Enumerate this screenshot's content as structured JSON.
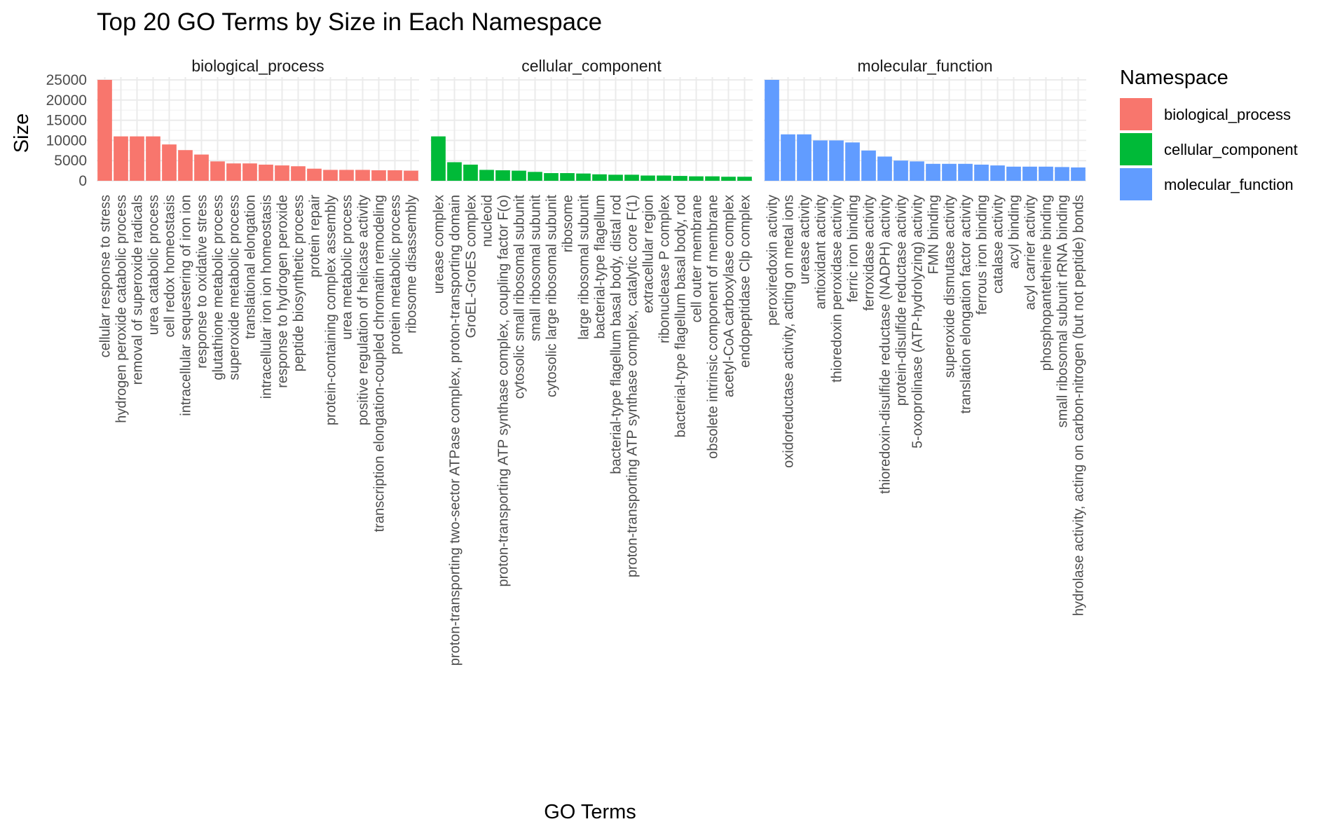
{
  "chart_data": {
    "type": "bar",
    "title": "Top 20 GO Terms by Size in Each Namespace",
    "xlabel": "GO Terms",
    "ylabel": "Size",
    "ylim": [
      0,
      25000
    ],
    "yticks": [
      0,
      5000,
      10000,
      15000,
      20000,
      25000
    ],
    "grid": true,
    "legend": {
      "title": "Namespace",
      "position": "right",
      "entries": [
        {
          "label": "biological_process",
          "color": "#F8766D"
        },
        {
          "label": "cellular_component",
          "color": "#00BA38"
        },
        {
          "label": "molecular_function",
          "color": "#619CFF"
        }
      ]
    },
    "facets": [
      {
        "name": "biological_process",
        "color": "#F8766D",
        "categories": [
          "cellular response to stress",
          "hydrogen peroxide catabolic process",
          "removal of superoxide radicals",
          "urea catabolic process",
          "cell redox homeostasis",
          "intracellular sequestering of iron ion",
          "response to oxidative stress",
          "glutathione metabolic process",
          "superoxide metabolic process",
          "translational elongation",
          "intracellular iron ion homeostasis",
          "response to hydrogen peroxide",
          "peptide biosynthetic process",
          "protein repair",
          "protein-containing complex assembly",
          "urea metabolic process",
          "positive regulation of helicase activity",
          "transcription elongation-coupled chromatin remodeling",
          "protein metabolic process",
          "ribosome disassembly"
        ],
        "values": [
          25000,
          11000,
          11000,
          11000,
          9000,
          7600,
          6500,
          4800,
          4300,
          4300,
          4000,
          3800,
          3600,
          3000,
          2700,
          2700,
          2700,
          2600,
          2600,
          2500
        ]
      },
      {
        "name": "cellular_component",
        "color": "#00BA38",
        "categories": [
          "urease complex",
          "proton-transporting two-sector ATPase complex, proton-transporting domain",
          "GroEL-GroES complex",
          "nucleoid",
          "proton-transporting ATP synthase complex, coupling factor F(o)",
          "cytosolic small ribosomal subunit",
          "small ribosomal subunit",
          "cytosolic large ribosomal subunit",
          "ribosome",
          "large ribosomal subunit",
          "bacterial-type flagellum",
          "bacterial-type flagellum basal body, distal rod",
          "proton-transporting ATP synthase complex, catalytic core F(1)",
          "extracellular region",
          "ribonuclease P complex",
          "bacterial-type flagellum basal body, rod",
          "cell outer membrane",
          "obsolete intrinsic component of membrane",
          "acetyl-CoA carboxylase complex",
          "endopeptidase Clp complex"
        ],
        "values": [
          11000,
          4600,
          4000,
          2700,
          2600,
          2500,
          2200,
          1900,
          1900,
          1800,
          1600,
          1500,
          1500,
          1300,
          1300,
          1200,
          1100,
          1100,
          1000,
          1000
        ]
      },
      {
        "name": "molecular_function",
        "color": "#619CFF",
        "categories": [
          "peroxiredoxin activity",
          "oxidoreductase activity, acting on metal ions",
          "urease activity",
          "antioxidant activity",
          "thioredoxin peroxidase activity",
          "ferric iron binding",
          "ferroxidase activity",
          "thioredoxin-disulfide reductase (NADPH) activity",
          "protein-disulfide reductase activity",
          "5-oxoprolinase (ATP-hydrolyzing) activity",
          "FMN binding",
          "superoxide dismutase activity",
          "translation elongation factor activity",
          "ferrous iron binding",
          "catalase activity",
          "acyl binding",
          "acyl carrier activity",
          "phosphopantetheine binding",
          "small ribosomal subunit rRNA binding",
          "hydrolase activity, acting on carbon-nitrogen (but not peptide) bonds"
        ],
        "values": [
          25000,
          11500,
          11500,
          10000,
          10000,
          9500,
          7500,
          6000,
          5000,
          4800,
          4200,
          4200,
          4200,
          4000,
          3800,
          3500,
          3500,
          3500,
          3400,
          3300
        ]
      }
    ]
  }
}
